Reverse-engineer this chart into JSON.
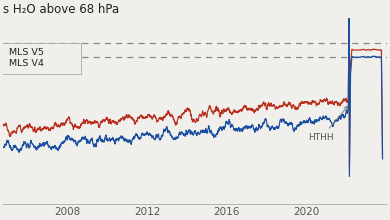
{
  "title": "s H₂O above 68 hPa",
  "title_fontsize": 8.5,
  "background_color": "#f0efeb",
  "line_color_v5": "#b83020",
  "line_color_v4": "#1a4fa0",
  "dashed_line_y1": 6.5,
  "dashed_line_y2": 6.1,
  "legend_v5": "MLS V5",
  "legend_v4": "MLS V4",
  "annotation": "HTHH",
  "xlim": [
    2004.8,
    2024.0
  ],
  "ylim": [
    2.0,
    7.2
  ],
  "xticks": [
    2008,
    2012,
    2016,
    2020
  ],
  "spike_year": 2022.08,
  "v5_base": 4.05,
  "v4_base": 3.55,
  "trend": 0.048,
  "noise_amp": 0.09,
  "seasonal_amp": 0.06,
  "spike_height_v4": 3.3,
  "spike_height_v5": 2.5,
  "post_spike_v4": 6.25,
  "post_spike_v5": 6.55
}
